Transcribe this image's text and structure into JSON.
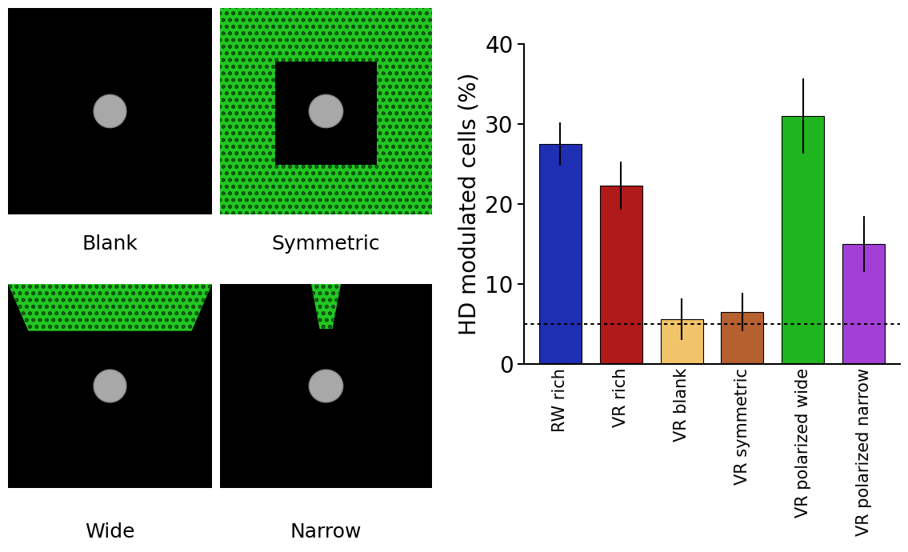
{
  "chart_data": {
    "type": "bar",
    "ylabel": "HD modulated cells (%)",
    "categories": [
      "RW rich",
      "VR rich",
      "VR blank",
      "VR symmetric",
      "VR polarized wide",
      "VR polarized narrow"
    ],
    "values": [
      27.5,
      22.3,
      5.6,
      6.5,
      31.0,
      15.0
    ],
    "errors": [
      2.7,
      3.0,
      2.6,
      2.4,
      4.7,
      3.5
    ],
    "colors": [
      "#1f2fb3",
      "#b01a1a",
      "#f2c46a",
      "#b5602e",
      "#1fb51f",
      "#a43fd6"
    ],
    "chance_level": 5,
    "ylim": [
      0,
      40
    ],
    "yticks": [
      0,
      10,
      20,
      30,
      40
    ],
    "grid": false
  },
  "panels": [
    {
      "label": "Blank"
    },
    {
      "label": "Symmetric"
    },
    {
      "label": "Wide"
    },
    {
      "label": "Narrow"
    }
  ]
}
